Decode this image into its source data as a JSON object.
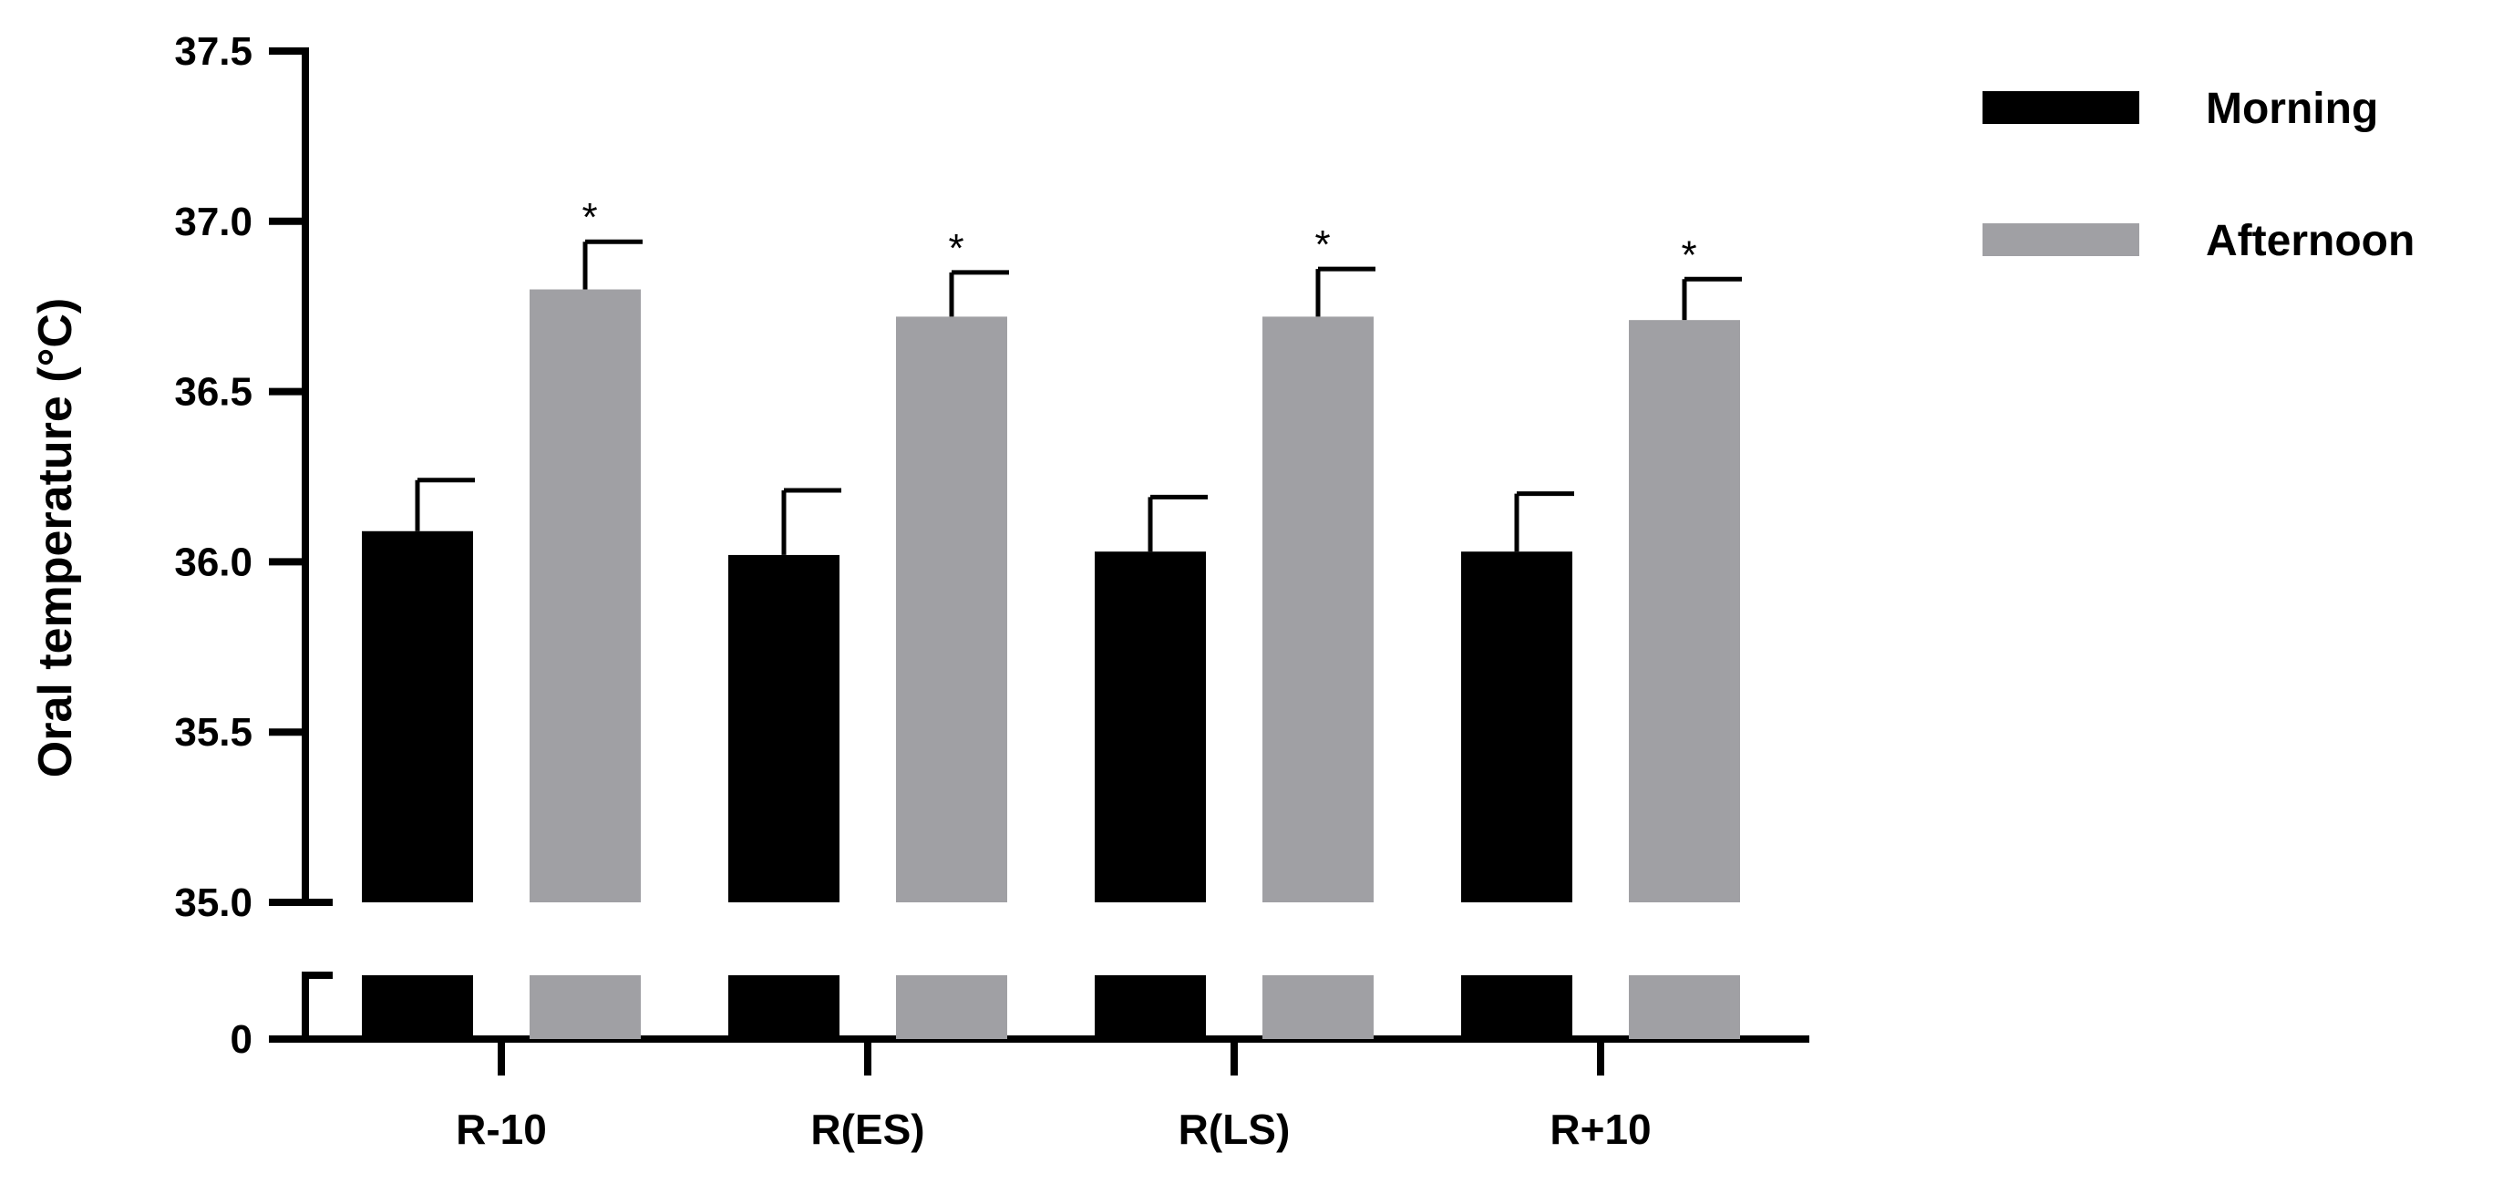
{
  "chart_data": {
    "type": "bar",
    "title": "",
    "xlabel": "",
    "ylabel": "Oral temperature (°C)",
    "ylim": [
      35.0,
      37.5
    ],
    "y_axis_break": {
      "lower_ticks": [
        "0"
      ],
      "upper_ticks": [
        "35.0",
        "35.5",
        "36.0",
        "36.5",
        "37.0",
        "37.5"
      ]
    },
    "yticks": [
      35.0,
      35.5,
      36.0,
      36.5,
      37.0,
      37.5
    ],
    "ytick_labels": [
      "35.0",
      "35.5",
      "36.0",
      "36.5",
      "37.0",
      "37.5"
    ],
    "lower_tick_label": "0",
    "categories": [
      "R-10",
      "R(ES)",
      "R(LS)",
      "R+10"
    ],
    "series": [
      {
        "name": "Morning",
        "color": "#000000",
        "values": [
          36.09,
          36.02,
          36.03,
          36.03
        ],
        "errors": [
          0.15,
          0.19,
          0.16,
          0.17
        ],
        "markers": [
          "",
          "",
          "",
          ""
        ]
      },
      {
        "name": "Afternoon",
        "color": "#a0a0a4",
        "values": [
          36.8,
          36.72,
          36.72,
          36.71
        ],
        "errors": [
          0.14,
          0.13,
          0.14,
          0.12
        ],
        "markers": [
          "*",
          "*",
          "*",
          "*"
        ]
      }
    ],
    "legend_position": "top-right",
    "grid": false
  }
}
